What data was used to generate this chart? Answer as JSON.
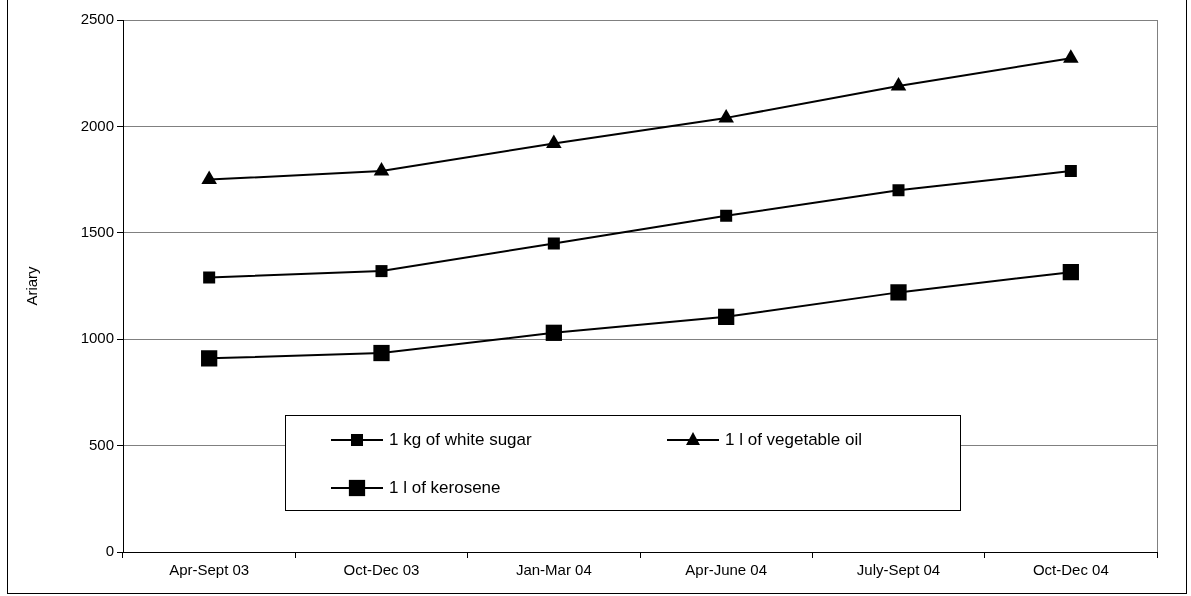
{
  "chart_data": {
    "type": "line",
    "ylabel": "Ariary",
    "categories": [
      "Apr-Sept 03",
      "Oct-Dec 03",
      "Jan-Mar 04",
      "Apr-June 04",
      "July-Sept 04",
      "Oct-Dec 04"
    ],
    "series": [
      {
        "name": "1 kg of white sugar",
        "color": "#000000",
        "marker": "square",
        "values": [
          1290,
          1320,
          1450,
          1580,
          1700,
          1790
        ]
      },
      {
        "name": "1 l of vegetable oil",
        "color": "#000000",
        "marker": "triangle",
        "values": [
          1750,
          1790,
          1920,
          2040,
          2190,
          2320
        ]
      },
      {
        "name": "1 l of kerosene",
        "color": "#000000",
        "marker": "square",
        "values": [
          910,
          935,
          1030,
          1105,
          1220,
          1315
        ]
      }
    ],
    "ylim": [
      0,
      2500
    ],
    "yticks": [
      0,
      500,
      1000,
      1500,
      2000,
      2500
    ],
    "grid": "y",
    "legend": "bottom",
    "line_style": "solid"
  }
}
